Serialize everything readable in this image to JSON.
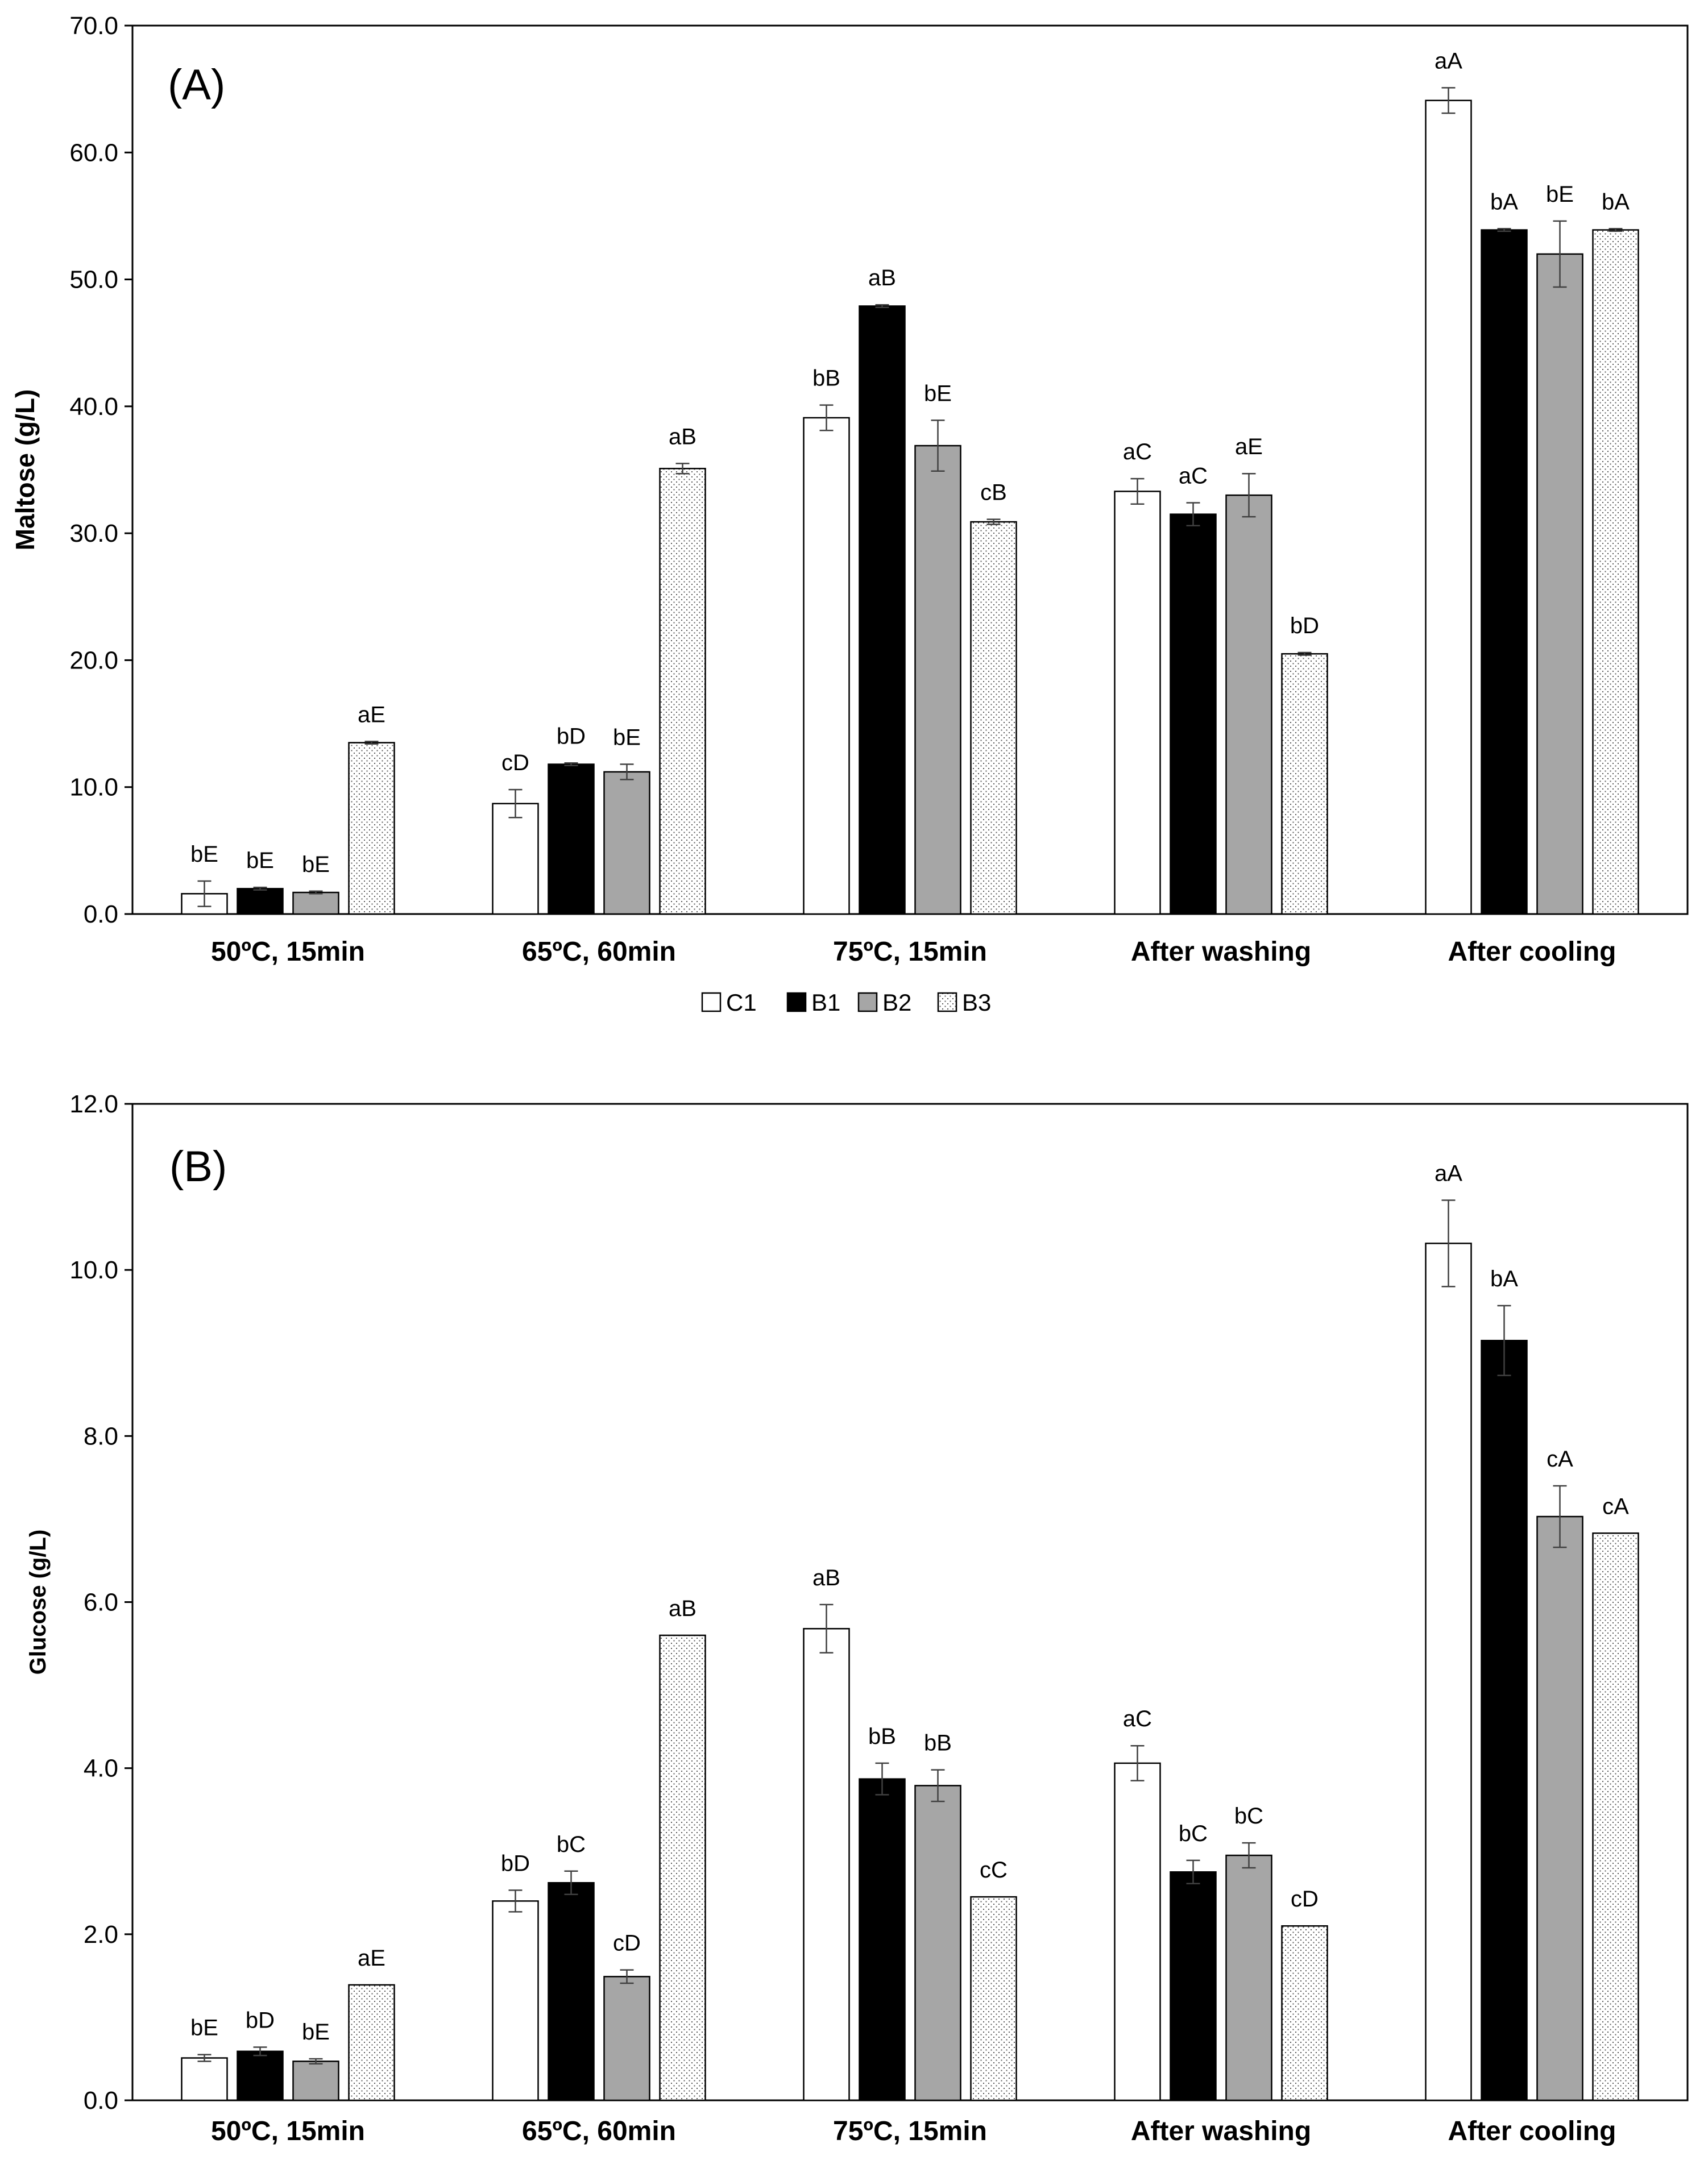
{
  "colors": {
    "C1": "#ffffff",
    "B1": "#000000",
    "B2": "#a6a6a6",
    "B3": "stipple",
    "axis": "#000000",
    "error": "#404040"
  },
  "legend": {
    "entries": [
      "C1",
      "B1",
      "B2",
      "B3"
    ]
  },
  "chart_data": [
    {
      "type": "bar",
      "panel_label": "(A)",
      "ylabel": "Maltose (g/L)",
      "xlabel": "",
      "ylim": [
        0,
        70
      ],
      "ytick_labels": [
        "0.0",
        "10.0",
        "20.0",
        "30.0",
        "40.0",
        "50.0",
        "60.0",
        "70.0"
      ],
      "categories": [
        "50ºC, 15min",
        "65ºC, 60min",
        "75ºC, 15min",
        "After washing",
        "After cooling"
      ],
      "series": [
        {
          "name": "C1",
          "values": [
            1.6,
            8.7,
            39.1,
            33.3,
            64.1
          ],
          "errors": [
            1.0,
            1.1,
            1.0,
            1.0,
            1.0
          ],
          "labels": [
            "bE",
            "cD",
            "bB",
            "aC",
            "aA"
          ]
        },
        {
          "name": "B1",
          "values": [
            2.0,
            11.8,
            47.9,
            31.5,
            53.9
          ],
          "errors": [
            0.1,
            0.1,
            0.1,
            0.9,
            0.1
          ],
          "labels": [
            "bE",
            "bD",
            "aB",
            "aC",
            "bA"
          ]
        },
        {
          "name": "B2",
          "values": [
            1.7,
            11.2,
            36.9,
            33.0,
            52.0
          ],
          "errors": [
            0.1,
            0.6,
            2.0,
            1.7,
            2.6
          ],
          "labels": [
            "bE",
            "bE",
            "bE",
            "aE",
            "bE"
          ]
        },
        {
          "name": "B3",
          "values": [
            13.5,
            35.1,
            30.9,
            20.5,
            53.9
          ],
          "errors": [
            0.1,
            0.4,
            0.2,
            0.1,
            0.1
          ],
          "labels": [
            "aE",
            "aB",
            "cB",
            "bD",
            "bA"
          ]
        }
      ]
    },
    {
      "type": "bar",
      "panel_label": "(B)",
      "ylabel": "Glucose (g/L)",
      "xlabel": "",
      "ylim": [
        0,
        12
      ],
      "ytick_labels": [
        "0.0",
        "2.0",
        "4.0",
        "6.0",
        "8.0",
        "10.0",
        "12.0"
      ],
      "categories": [
        "50ºC, 15min",
        "65ºC, 60min",
        "75ºC, 15min",
        "After washing",
        "After cooling"
      ],
      "series": [
        {
          "name": "C1",
          "values": [
            0.51,
            2.4,
            5.68,
            4.06,
            10.32
          ],
          "errors": [
            0.04,
            0.13,
            0.29,
            0.21,
            0.52
          ],
          "labels": [
            "bE",
            "bD",
            "aB",
            "aC",
            "aA"
          ]
        },
        {
          "name": "B1",
          "values": [
            0.59,
            2.62,
            3.87,
            2.75,
            9.15
          ],
          "errors": [
            0.05,
            0.14,
            0.19,
            0.14,
            0.42
          ],
          "labels": [
            "bD",
            "bC",
            "bB",
            "bC",
            "bA"
          ]
        },
        {
          "name": "B2",
          "values": [
            0.47,
            1.49,
            3.79,
            2.95,
            7.03
          ],
          "errors": [
            0.03,
            0.08,
            0.19,
            0.15,
            0.37
          ],
          "labels": [
            "bE",
            "cD",
            "bB",
            "bC",
            "cA"
          ]
        },
        {
          "name": "B3",
          "values": [
            1.39,
            5.6,
            2.45,
            2.1,
            6.83
          ],
          "errors": [
            0.0,
            0.0,
            0.0,
            0.0,
            0.0
          ],
          "labels": [
            "aE",
            "aB",
            "cC",
            "cD",
            "cA"
          ]
        }
      ]
    }
  ]
}
